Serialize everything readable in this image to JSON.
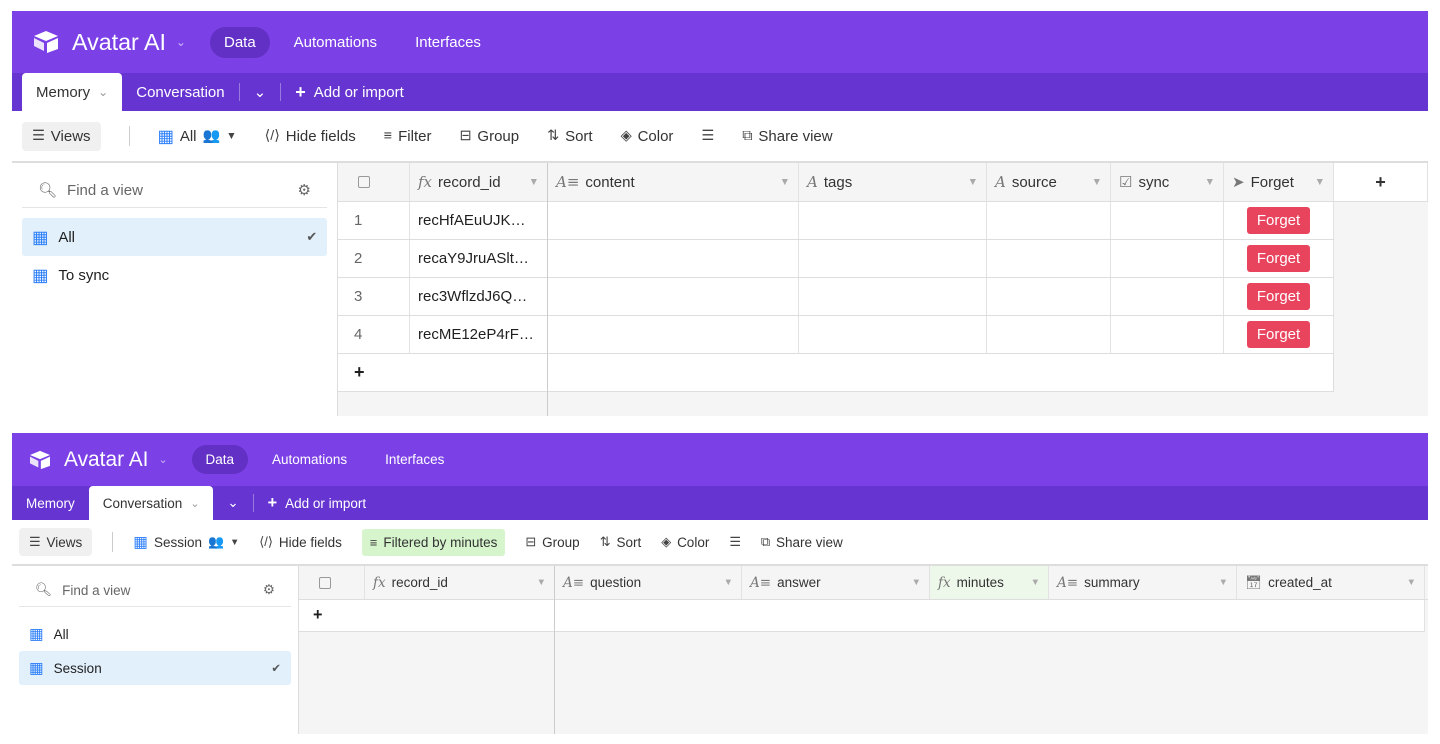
{
  "panels": [
    {
      "app": {
        "name": "Avatar AI",
        "nav": [
          "Data",
          "Automations",
          "Interfaces"
        ],
        "active_nav": "Data"
      },
      "tabs": {
        "items": [
          "Memory",
          "Conversation"
        ],
        "active": "Memory",
        "add_label": "Add or import"
      },
      "toolbar": {
        "views": "Views",
        "view_name": "All",
        "hide_fields": "Hide fields",
        "filter": "Filter",
        "group": "Group",
        "sort": "Sort",
        "color": "Color",
        "share": "Share view"
      },
      "sidebar": {
        "search_placeholder": "Find a view",
        "views": [
          "All",
          "To sync"
        ],
        "active_view": "All"
      },
      "columns": [
        "record_id",
        "content",
        "tags",
        "source",
        "sync",
        "Forget"
      ],
      "rows": [
        {
          "n": "1",
          "record_id": "recHfAEuUJK…",
          "forget": "Forget"
        },
        {
          "n": "2",
          "record_id": "recaY9JruASlt…",
          "forget": "Forget"
        },
        {
          "n": "3",
          "record_id": "rec3WflzdJ6Q…",
          "forget": "Forget"
        },
        {
          "n": "4",
          "record_id": "recME12eP4rF…",
          "forget": "Forget"
        }
      ]
    },
    {
      "app": {
        "name": "Avatar AI",
        "nav": [
          "Data",
          "Automations",
          "Interfaces"
        ],
        "active_nav": "Data"
      },
      "tabs": {
        "items": [
          "Memory",
          "Conversation"
        ],
        "active": "Conversation",
        "add_label": "Add or import"
      },
      "toolbar": {
        "views": "Views",
        "view_name": "Session",
        "hide_fields": "Hide fields",
        "filter": "Filtered by minutes",
        "group": "Group",
        "sort": "Sort",
        "color": "Color",
        "share": "Share view"
      },
      "sidebar": {
        "search_placeholder": "Find a view",
        "views": [
          "All",
          "Session"
        ],
        "active_view": "Session"
      },
      "columns": [
        "record_id",
        "question",
        "answer",
        "minutes",
        "summary",
        "created_at"
      ],
      "rows": []
    }
  ],
  "colors": {
    "topbar": "#7b40e6",
    "tabbar": "#6634d0",
    "forget_button": "#e8445e",
    "filter_active": "#d6f5cc",
    "view_active": "#e1f0fb"
  }
}
